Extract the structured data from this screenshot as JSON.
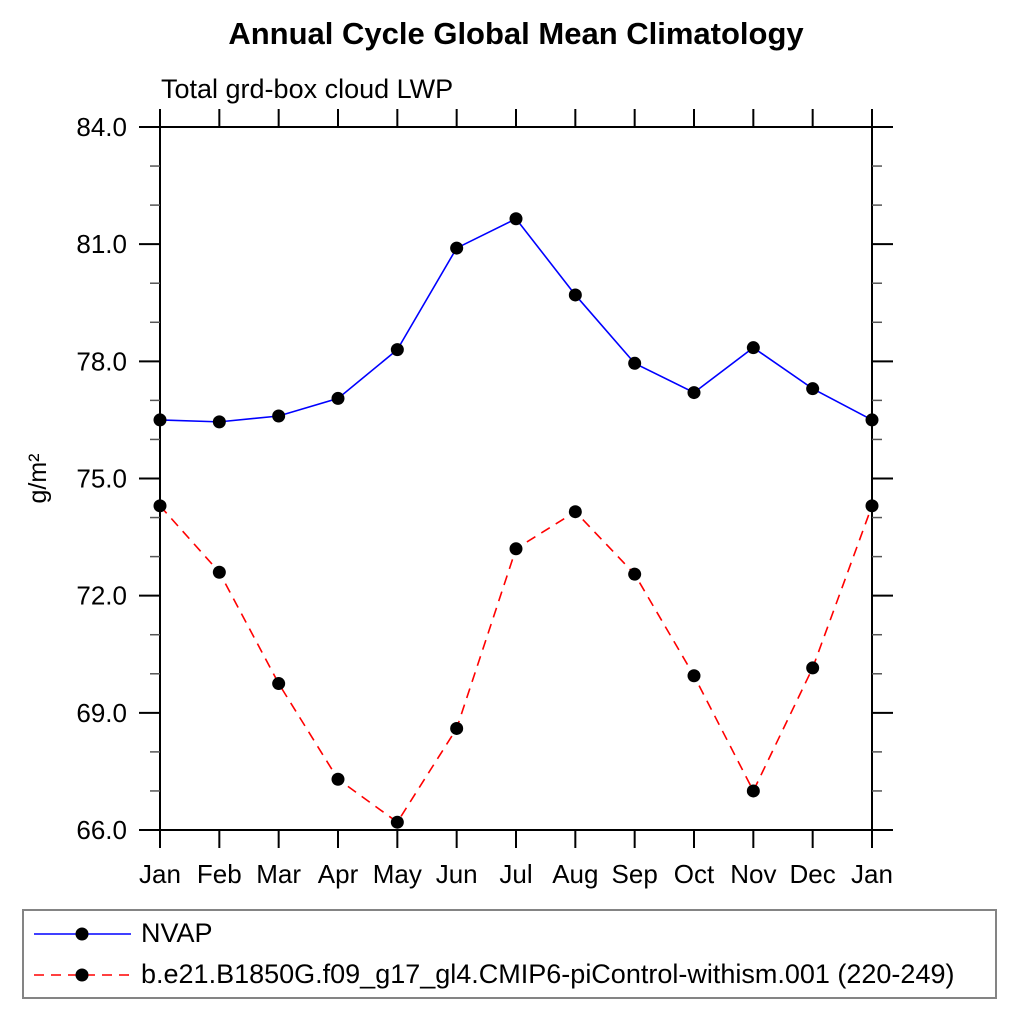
{
  "chart_data": {
    "type": "line",
    "title": "Annual Cycle Global Mean Climatology",
    "subtitle": "Total grd-box cloud LWP",
    "ylabel": "g/m²",
    "xlabel": "",
    "categories": [
      "Jan",
      "Feb",
      "Mar",
      "Apr",
      "May",
      "Jun",
      "Jul",
      "Aug",
      "Sep",
      "Oct",
      "Nov",
      "Dec",
      "Jan"
    ],
    "ylim": [
      66.0,
      84.0
    ],
    "ytick_major_values": [
      66.0,
      69.0,
      72.0,
      75.0,
      78.0,
      81.0,
      84.0
    ],
    "ytick_major_labels": [
      "66.0",
      "69.0",
      "72.0",
      "75.0",
      "78.0",
      "81.0",
      "84.0"
    ],
    "ytick_minor_step": 1.0,
    "grid": false,
    "legend_position": "bottom",
    "marker": "filled-circle",
    "marker_color": "#000000",
    "series": [
      {
        "name": "NVAP",
        "color": "#0000ff",
        "line_style": "solid",
        "values": [
          76.5,
          76.45,
          76.6,
          77.05,
          78.3,
          80.9,
          81.65,
          79.7,
          77.95,
          77.2,
          78.35,
          77.3,
          76.5
        ]
      },
      {
        "name": "b.e21.B1850G.f09_g17_gl4.CMIP6-piControl-withism.001 (220-249)",
        "color": "#ff0000",
        "line_style": "dashed",
        "values": [
          74.3,
          72.6,
          69.75,
          67.3,
          66.2,
          68.6,
          73.2,
          74.15,
          72.55,
          69.95,
          67.0,
          70.15,
          74.3
        ]
      }
    ]
  },
  "colors": {
    "axis": "#000000",
    "minor_tick": "#555555",
    "text": "#000000",
    "legend_border": "#848484",
    "background": "#ffffff"
  }
}
